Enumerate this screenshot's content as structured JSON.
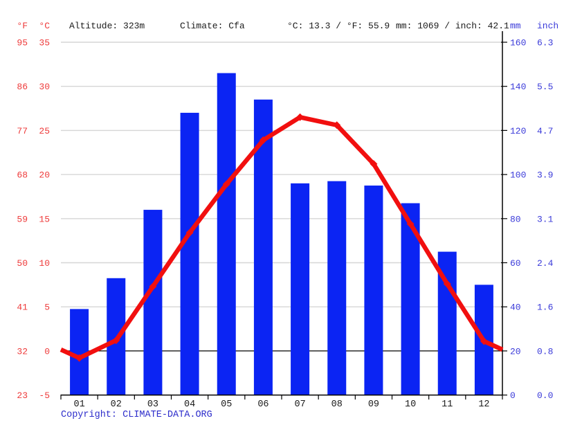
{
  "header": {
    "fahrenheit_label": "°F",
    "celsius_label": "°C",
    "altitude": "Altitude: 323m",
    "climate": "Climate: Cfa",
    "temperature_summary": "°C: 13.3 / °F: 55.9",
    "precipitation_summary": "mm: 1069 / inch: 42.1",
    "mm_label": "mm",
    "inch_label": "inch"
  },
  "footer": {
    "copyright_label": "Copyright: ",
    "source_link": "CLIMATE-DATA.ORG"
  },
  "colors": {
    "bar_blue": "#0b24f3",
    "line_red": "#f10f0f",
    "red_label": "#ee3a3a",
    "blue_label": "#3a3ad9",
    "grid": "#d6d6d6",
    "axis": "#000000",
    "month_label": "#1a1a1a",
    "copyright": "#2d2dcb"
  },
  "chart_data": {
    "type": "bar",
    "title": "Climate graph: monthly precipitation (bars) and mean temperature (line)",
    "categories": [
      "01",
      "02",
      "03",
      "04",
      "05",
      "06",
      "07",
      "08",
      "09",
      "10",
      "11",
      "12"
    ],
    "series": [
      {
        "name": "precipitation_mm",
        "type": "bar",
        "values": [
          39,
          53,
          84,
          128,
          146,
          134,
          96,
          97,
          95,
          87,
          65,
          50
        ]
      },
      {
        "name": "temperature_c",
        "type": "line",
        "values": [
          -0.8,
          1.2,
          7.3,
          13.4,
          18.9,
          23.9,
          26.5,
          25.6,
          21.2,
          14.4,
          7.6,
          1.1
        ]
      }
    ],
    "axes": {
      "temp_f_ticks": [
        "95",
        "86",
        "77",
        "68",
        "59",
        "50",
        "41",
        "32",
        "23"
      ],
      "temp_c_ticks": [
        "35",
        "30",
        "25",
        "20",
        "15",
        "10",
        "5",
        "0",
        "-5"
      ],
      "precip_mm_ticks": [
        "160",
        "140",
        "120",
        "100",
        "80",
        "60",
        "40",
        "20",
        "0"
      ],
      "precip_inch_ticks": [
        "6.3",
        "5.5",
        "4.7",
        "3.9",
        "3.1",
        "2.4",
        "1.6",
        "0.8",
        "0.0"
      ],
      "temp_c_range": [
        -5,
        35
      ],
      "precip_mm_range": [
        0,
        160
      ],
      "grid": "on",
      "zero_temp_line": "black"
    },
    "annotations": {
      "annual_mean_temp_c": 13.3,
      "annual_mean_temp_f": 55.9,
      "annual_precip_mm": 1069,
      "annual_precip_inch": 42.1
    }
  }
}
